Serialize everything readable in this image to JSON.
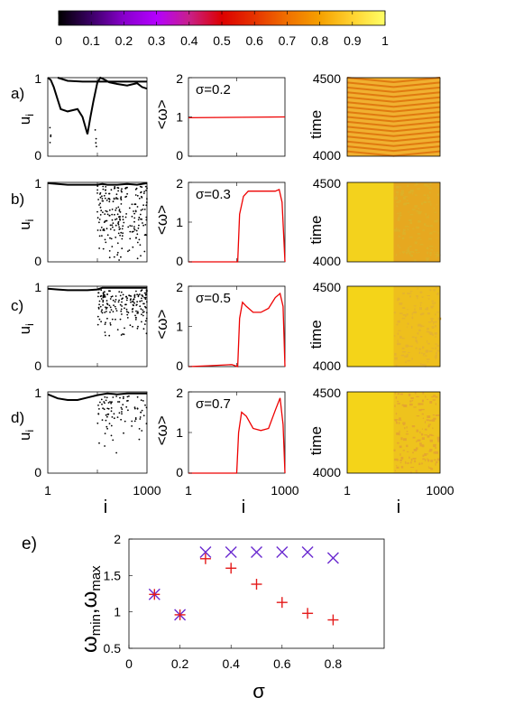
{
  "colorbar": {
    "ticks": [
      "0",
      "0.1",
      "0.2",
      "0.3",
      "0.4",
      "0.5",
      "0.6",
      "0.7",
      "0.8",
      "0.9",
      "1"
    ],
    "colormap": [
      "#000000",
      "#3b0066",
      "#8800cc",
      "#b400ff",
      "#c8208a",
      "#dd0000",
      "#e63300",
      "#f07000",
      "#f5a000",
      "#ffd230",
      "#ffff66"
    ]
  },
  "rows": [
    {
      "tag": "a)",
      "sigma_label": "σ=0.2"
    },
    {
      "tag": "b)",
      "sigma_label": "σ=0.3"
    },
    {
      "tag": "c)",
      "sigma_label": "σ=0.5"
    },
    {
      "tag": "d)",
      "sigma_label": "σ=0.7"
    }
  ],
  "col1": {
    "ylabel": "u",
    "ylabel_sub": "i",
    "yticks": [
      "0",
      "1"
    ],
    "xticks": [
      "1",
      "1000"
    ],
    "xlabel": "i"
  },
  "col2": {
    "ylabel": "<ω>",
    "yticks": [
      "0",
      "1",
      "2"
    ],
    "xticks": [
      "1",
      "1000"
    ],
    "xlabel": "i"
  },
  "col3": {
    "ylabel": "time",
    "yticks": [
      "4000",
      "4500"
    ],
    "xticks": [
      "1",
      "1000"
    ],
    "xlabel": "i"
  },
  "panel_e": {
    "tag": "e)",
    "ylabel_text": "ω",
    "ylabel_sub1": "min",
    "ylabel_sep": ",ω",
    "ylabel_sub2": "max",
    "xlabel": "σ"
  },
  "chart_data": [
    {
      "type": "line",
      "panel": "a",
      "series": [
        {
          "x": [
            0.1,
            0.2,
            0.35,
            0.5,
            0.6,
            0.75,
            0.9,
            1.0
          ],
          "y": [
            1.0,
            0.96,
            0.95,
            0.95,
            0.95,
            0.95,
            0.95,
            0.95
          ]
        },
        {
          "x": [
            0.0,
            0.03,
            0.06,
            0.1,
            0.13,
            0.2,
            0.3,
            0.35,
            0.4,
            0.43,
            0.46,
            0.5,
            0.53,
            0.58,
            0.62,
            0.7,
            0.8,
            0.9,
            0.95,
            1.0
          ],
          "y": [
            1.0,
            0.97,
            0.88,
            0.72,
            0.6,
            0.57,
            0.6,
            0.5,
            0.28,
            0.5,
            0.7,
            0.94,
            1.0,
            0.97,
            0.94,
            0.92,
            0.9,
            0.93,
            0.88,
            0.86
          ]
        }
      ]
    },
    {
      "type": "line",
      "panel": "b",
      "series": [
        {
          "x": [
            0.0,
            0.1,
            0.2,
            0.3,
            0.4,
            0.5,
            0.55,
            0.6,
            0.7,
            0.8,
            0.9,
            1.0
          ],
          "y": [
            0.99,
            0.98,
            0.97,
            0.97,
            0.97,
            0.97,
            0.98,
            0.97,
            0.97,
            0.98,
            0.97,
            0.99
          ]
        }
      ]
    },
    {
      "type": "line",
      "panel": "c",
      "series": [
        {
          "x": [
            0.0,
            0.1,
            0.2,
            0.3,
            0.4,
            0.5,
            0.55,
            0.6,
            0.7,
            0.8,
            0.9,
            1.0
          ],
          "y": [
            0.97,
            0.96,
            0.95,
            0.95,
            0.95,
            0.96,
            0.98,
            0.98,
            0.98,
            0.98,
            0.98,
            0.98
          ]
        }
      ]
    },
    {
      "type": "line",
      "panel": "d",
      "series": [
        {
          "x": [
            0.0,
            0.1,
            0.2,
            0.3,
            0.4,
            0.5,
            0.55,
            0.6,
            0.7,
            0.8,
            0.9,
            1.0
          ],
          "y": [
            0.97,
            0.92,
            0.9,
            0.9,
            0.93,
            0.96,
            0.97,
            0.98,
            0.97,
            0.98,
            0.98,
            0.98
          ]
        }
      ]
    },
    {
      "type": "line",
      "panel": "omega_a",
      "ylim": [
        0,
        2
      ],
      "series": [
        {
          "color": "#ee0000",
          "x": [
            0.0,
            1.0
          ],
          "y": [
            0.98,
            1.0
          ]
        }
      ]
    },
    {
      "type": "line",
      "panel": "omega_b",
      "ylim": [
        0,
        2
      ],
      "series": [
        {
          "color": "#ee0000",
          "x": [
            0.0,
            0.3,
            0.51,
            0.53,
            0.57,
            0.62,
            0.7,
            0.8,
            0.9,
            0.94,
            0.97,
            1.0
          ],
          "y": [
            0.0,
            0.0,
            0.0,
            1.2,
            1.65,
            1.78,
            1.78,
            1.78,
            1.78,
            1.82,
            1.5,
            0.0
          ]
        }
      ]
    },
    {
      "type": "line",
      "panel": "omega_c",
      "ylim": [
        0,
        2
      ],
      "series": [
        {
          "color": "#ee0000",
          "x": [
            0.0,
            0.2,
            0.45,
            0.51,
            0.53,
            0.56,
            0.6,
            0.67,
            0.75,
            0.83,
            0.9,
            0.95,
            0.98,
            1.0
          ],
          "y": [
            0.0,
            0.02,
            0.05,
            0.0,
            1.2,
            1.6,
            1.5,
            1.35,
            1.35,
            1.45,
            1.72,
            1.82,
            1.5,
            0.0
          ]
        }
      ]
    },
    {
      "type": "line",
      "panel": "omega_d",
      "ylim": [
        0,
        2
      ],
      "series": [
        {
          "color": "#ee0000",
          "x": [
            0.0,
            0.3,
            0.5,
            0.52,
            0.55,
            0.6,
            0.67,
            0.75,
            0.83,
            0.9,
            0.95,
            0.98,
            1.0
          ],
          "y": [
            0.0,
            0.0,
            0.0,
            1.0,
            1.5,
            1.4,
            1.1,
            1.05,
            1.1,
            1.55,
            1.85,
            1.2,
            0.0
          ]
        }
      ]
    },
    {
      "type": "heatmap",
      "panel": "time_a",
      "pattern": "stripes",
      "colors": [
        "#f0b030",
        "#e07a10"
      ]
    },
    {
      "type": "heatmap",
      "panel": "time_b",
      "pattern": "split",
      "split_fraction": 0.5,
      "colors": [
        "#f3d21d",
        "#e6a820",
        "#ddb028"
      ]
    },
    {
      "type": "heatmap",
      "panel": "time_c",
      "pattern": "split",
      "split_fraction": 0.5,
      "colors": [
        "#f4d419",
        "#eebf1d",
        "#e5b230"
      ]
    },
    {
      "type": "heatmap",
      "panel": "time_d",
      "pattern": "split",
      "split_fraction": 0.5,
      "colors": [
        "#f4d419",
        "#eec31d",
        "#e5a630"
      ]
    },
    {
      "type": "scatter",
      "panel": "e",
      "xlim": [
        0,
        1
      ],
      "ylim": [
        0.5,
        2
      ],
      "xticks": [
        "0",
        "0.2",
        "0.4",
        "0.6",
        "0.8"
      ],
      "yticks": [
        "0.5",
        "1",
        "1.5",
        "2"
      ],
      "series": [
        {
          "marker": "x",
          "color": "#6a2ad0",
          "x": [
            0.1,
            0.2,
            0.3,
            0.4,
            0.5,
            0.6,
            0.7,
            0.8
          ],
          "y": [
            1.24,
            0.96,
            1.82,
            1.82,
            1.82,
            1.82,
            1.82,
            1.74
          ]
        },
        {
          "marker": "+",
          "color": "#e41a1a",
          "x": [
            0.1,
            0.2,
            0.3,
            0.4,
            0.5,
            0.6,
            0.7,
            0.8
          ],
          "y": [
            1.24,
            0.96,
            1.73,
            1.6,
            1.38,
            1.13,
            0.98,
            0.89
          ]
        }
      ]
    }
  ]
}
